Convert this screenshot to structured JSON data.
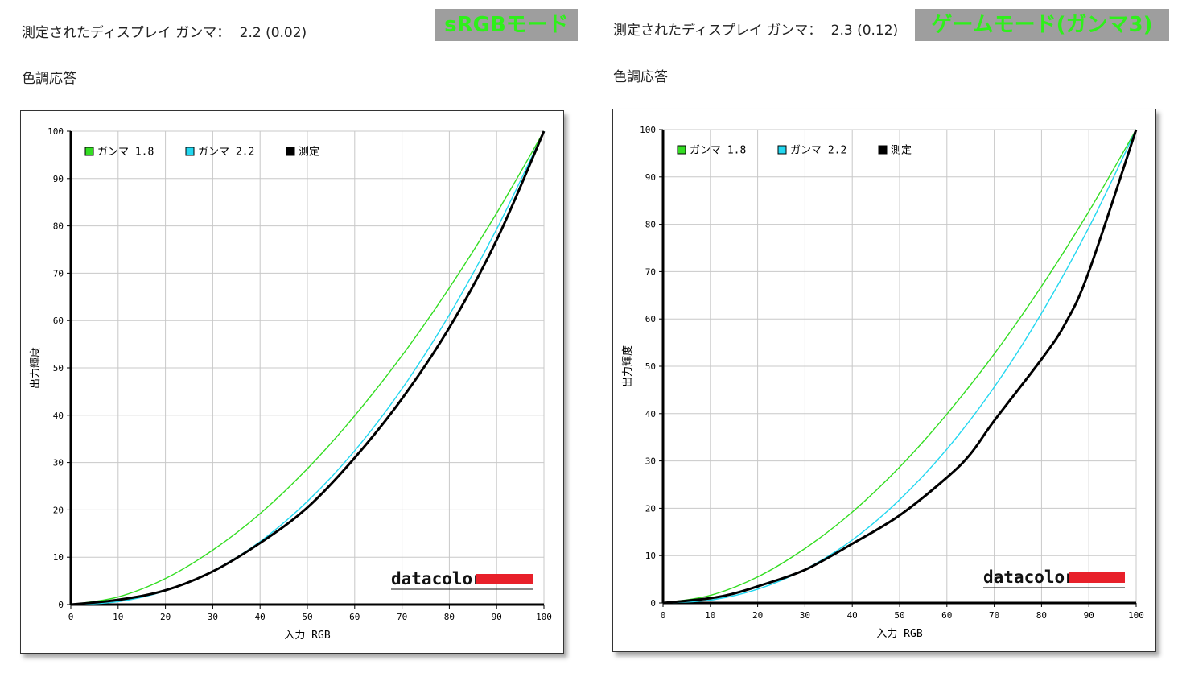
{
  "panels": [
    {
      "gamma_label": "測定されたディスプレイ ガンマ：",
      "gamma_value": "2.2 (0.02)",
      "mode_badge": "sRGBモード",
      "section_title": "色調応答",
      "brand": "datacolor"
    },
    {
      "gamma_label": "測定されたディスプレイ ガンマ：",
      "gamma_value": "2.3 (0.12)",
      "mode_badge": "ゲームモード(ガンマ3)",
      "section_title": "色調応答",
      "brand": "datacolor"
    }
  ],
  "colors": {
    "gamma18": "#33dd22",
    "gamma22": "#22d7f0",
    "measured": "#000000",
    "badge_bg": "#9e9e9e",
    "badge_text": "#2ef01a",
    "brand_red": "#e8202a"
  },
  "chart_data": [
    {
      "type": "line",
      "xlabel": "入力 RGB",
      "ylabel": "出力輝度",
      "xlim": [
        0,
        100
      ],
      "ylim": [
        0,
        100
      ],
      "xticks": [
        0,
        10,
        20,
        30,
        40,
        50,
        60,
        70,
        80,
        90,
        100
      ],
      "yticks": [
        0,
        10,
        20,
        30,
        40,
        50,
        60,
        70,
        80,
        90,
        100
      ],
      "grid": true,
      "legend_position": "top-left",
      "series": [
        {
          "name": "ガンマ 1.8",
          "color": "#33dd22",
          "x": [
            0,
            10,
            20,
            30,
            40,
            50,
            60,
            70,
            80,
            90,
            100
          ],
          "y": [
            0,
            1.6,
            5.5,
            11.5,
            19.2,
            28.7,
            39.9,
            52.6,
            66.9,
            82.7,
            100
          ]
        },
        {
          "name": "ガンマ 2.2",
          "color": "#22d7f0",
          "x": [
            0,
            10,
            20,
            30,
            40,
            50,
            60,
            70,
            80,
            90,
            100
          ],
          "y": [
            0,
            0.6,
            2.9,
            7.1,
            13.3,
            21.8,
            32.5,
            45.6,
            61.2,
            79.3,
            100
          ]
        },
        {
          "name": "測定",
          "color": "#000000",
          "x": [
            0,
            10,
            20,
            30,
            40,
            50,
            60,
            70,
            80,
            90,
            100
          ],
          "y": [
            0,
            1.0,
            3.0,
            7.0,
            13.0,
            20.5,
            31.0,
            43.5,
            58.5,
            77.0,
            100
          ]
        }
      ]
    },
    {
      "type": "line",
      "xlabel": "入力 RGB",
      "ylabel": "出力輝度",
      "xlim": [
        0,
        100
      ],
      "ylim": [
        0,
        100
      ],
      "xticks": [
        0,
        10,
        20,
        30,
        40,
        50,
        60,
        70,
        80,
        90,
        100
      ],
      "yticks": [
        0,
        10,
        20,
        30,
        40,
        50,
        60,
        70,
        80,
        90,
        100
      ],
      "grid": true,
      "legend_position": "top-left",
      "series": [
        {
          "name": "ガンマ 1.8",
          "color": "#33dd22",
          "x": [
            0,
            10,
            20,
            30,
            40,
            50,
            60,
            70,
            80,
            90,
            100
          ],
          "y": [
            0,
            1.6,
            5.5,
            11.5,
            19.2,
            28.7,
            39.9,
            52.6,
            66.9,
            82.7,
            100
          ]
        },
        {
          "name": "ガンマ 2.2",
          "color": "#22d7f0",
          "x": [
            0,
            10,
            20,
            30,
            40,
            50,
            60,
            70,
            80,
            90,
            100
          ],
          "y": [
            0,
            0.6,
            2.9,
            7.1,
            13.3,
            21.8,
            32.5,
            45.6,
            61.2,
            79.3,
            100
          ]
        },
        {
          "name": "測定",
          "color": "#000000",
          "x": [
            0,
            10,
            15,
            20,
            30,
            40,
            50,
            60,
            65,
            70,
            80,
            85,
            90,
            100
          ],
          "y": [
            0,
            1.0,
            2.0,
            3.5,
            7.0,
            12.5,
            18.5,
            26.5,
            31.5,
            38.5,
            51.5,
            59.0,
            70.0,
            100
          ]
        }
      ]
    }
  ]
}
